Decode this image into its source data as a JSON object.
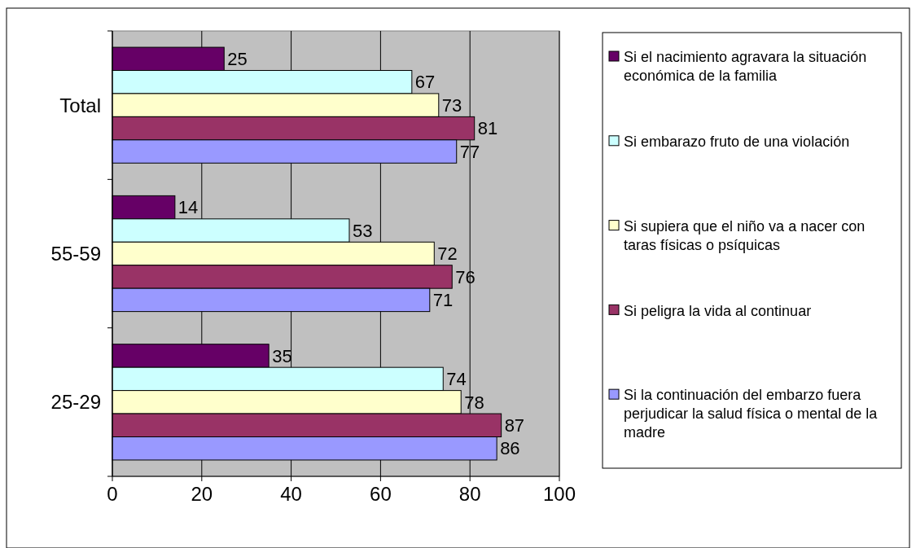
{
  "chart_data": {
    "type": "bar",
    "orientation": "horizontal",
    "categories": [
      "Total",
      "55-59",
      "25-29"
    ],
    "series": [
      {
        "name": "Si el nacimiento agravara la situación económica de la familia",
        "color": "#660066",
        "values": [
          25,
          14,
          35
        ]
      },
      {
        "name": "Si embarazo fruto de una violación",
        "color": "#ccffff",
        "values": [
          67,
          53,
          74
        ]
      },
      {
        "name": "Si supiera que el niño va a nacer con taras físicas o psíquicas",
        "color": "#ffffcc",
        "values": [
          73,
          72,
          78
        ]
      },
      {
        "name": "Si peligra la vida al continuar",
        "color": "#993366",
        "values": [
          81,
          76,
          87
        ]
      },
      {
        "name": "Si la continuación del embarzo fuera perjudicar la salud física o mental de la madre",
        "color": "#9999ff",
        "values": [
          77,
          71,
          86
        ]
      }
    ],
    "xlim": [
      0,
      100
    ],
    "xticks": [
      0,
      20,
      40,
      60,
      80,
      100
    ],
    "grid": "x",
    "legend": "right",
    "data_labels": true
  }
}
